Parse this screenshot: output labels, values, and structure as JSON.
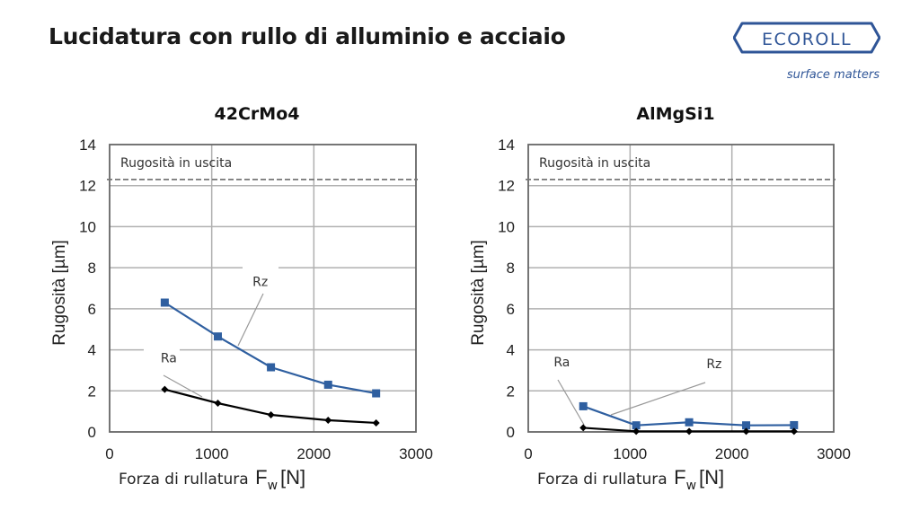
{
  "header": {
    "title": "Lucidatura con rullo di alluminio e acciaio"
  },
  "logo": {
    "brand": "ECOROLL",
    "tagline": "surface matters",
    "color": "#2f5597"
  },
  "chart_data": [
    {
      "type": "line",
      "title": "42CrMo4",
      "xlabel": "Forza di rullatura F_w [N]",
      "xlabel_main": "Forza di rullatura",
      "xlabel_symbol": "F",
      "xlabel_subscript": "w",
      "xlabel_unit": "[N]",
      "ylabel": "Rugosità [µm]",
      "xlim": [
        0,
        3000
      ],
      "ylim": [
        0,
        14
      ],
      "xticks": [
        0,
        1000,
        2000,
        3000
      ],
      "yticks": [
        0,
        2,
        4,
        6,
        8,
        10,
        12,
        14
      ],
      "grid": true,
      "x": [
        540,
        1060,
        1580,
        2140,
        2610
      ],
      "series": [
        {
          "name": "Rz",
          "color": "#2f5fa0",
          "marker": "square",
          "values": [
            6.3,
            4.65,
            3.15,
            2.3,
            1.88
          ]
        },
        {
          "name": "Ra",
          "color": "#000000",
          "marker": "diamond",
          "values": [
            2.07,
            1.4,
            0.83,
            0.57,
            0.44
          ]
        }
      ],
      "reference_line": {
        "label": "Rugosità in uscita",
        "value": 12.3,
        "style": "dashed"
      },
      "annotations": [
        {
          "text": "Rz",
          "x": 1400,
          "y": 7.1
        },
        {
          "text": "Ra",
          "x": 500,
          "y": 3.4
        }
      ]
    },
    {
      "type": "line",
      "title": "AlMgSi1",
      "xlabel": "Forza di rullatura F_w [N]",
      "xlabel_main": "Forza di rullatura",
      "xlabel_symbol": "F",
      "xlabel_subscript": "w",
      "xlabel_unit": "[N]",
      "ylabel": "Rugosità [µm]",
      "xlim": [
        0,
        3000
      ],
      "ylim": [
        0,
        14
      ],
      "xticks": [
        0,
        1000,
        2000,
        3000
      ],
      "yticks": [
        0,
        2,
        4,
        6,
        8,
        10,
        12,
        14
      ],
      "grid": true,
      "x": [
        540,
        1060,
        1580,
        2140,
        2610
      ],
      "series": [
        {
          "name": "Rz",
          "color": "#2f5fa0",
          "marker": "square",
          "values": [
            1.25,
            0.32,
            0.47,
            0.32,
            0.33
          ]
        },
        {
          "name": "Ra",
          "color": "#000000",
          "marker": "diamond",
          "values": [
            0.2,
            0.03,
            0.03,
            0.03,
            0.03
          ]
        }
      ],
      "reference_line": {
        "label": "Rugosità in uscita",
        "value": 12.3,
        "style": "dashed"
      },
      "annotations": [
        {
          "text": "Ra",
          "x": 250,
          "y": 3.2
        },
        {
          "text": "Rz",
          "x": 1750,
          "y": 3.1
        }
      ]
    }
  ]
}
